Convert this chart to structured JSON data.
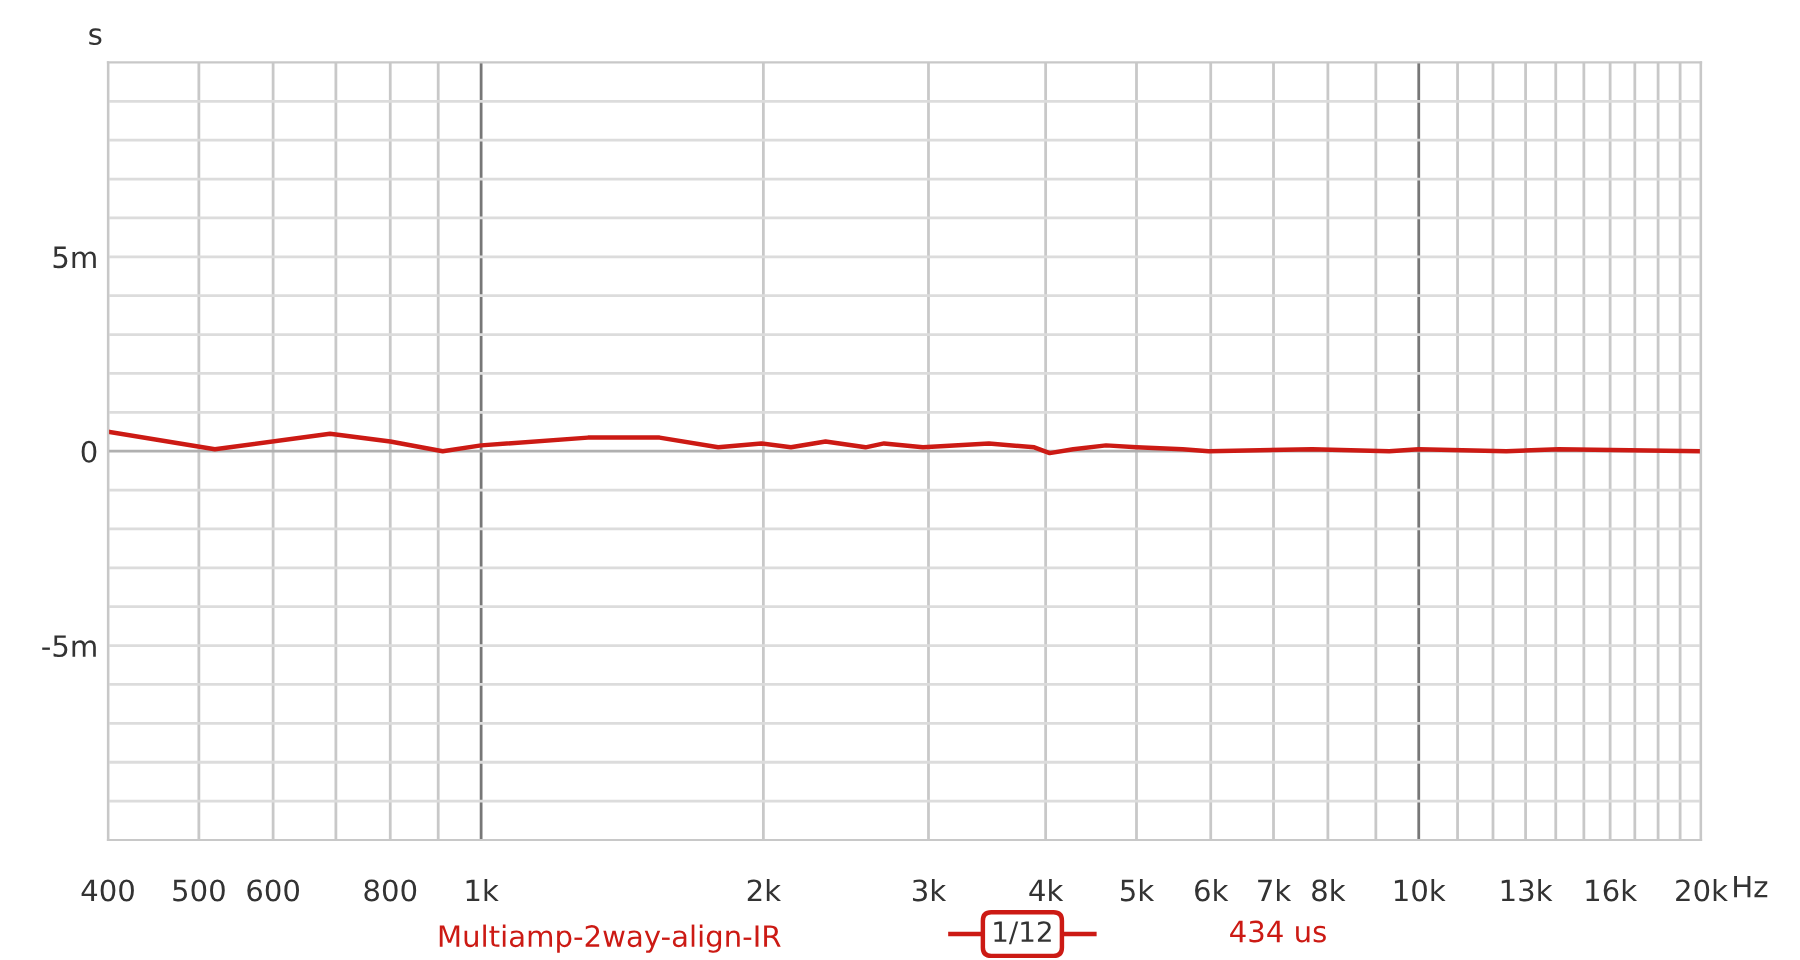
{
  "chart_data": {
    "type": "line",
    "ylabel": "s",
    "xlabel": "Hz",
    "log": "x",
    "grid": true,
    "legend": "bottom",
    "line_style": "solid",
    "marker": "none",
    "xlim": [
      400,
      20000
    ],
    "xticks": [
      400,
      500,
      600,
      {
        "value": 700,
        "label": null
      },
      800,
      {
        "value": 900,
        "label": null
      },
      {
        "value": 1000,
        "label": "1k"
      },
      {
        "value": 2000,
        "label": "2k"
      },
      {
        "value": 3000,
        "label": "3k"
      },
      {
        "value": 4000,
        "label": "4k"
      },
      {
        "value": 5000,
        "label": "5k"
      },
      {
        "value": 6000,
        "label": "6k"
      },
      {
        "value": 7000,
        "label": "7k"
      },
      {
        "value": 8000,
        "label": "8k"
      },
      {
        "value": 9000,
        "label": null
      },
      {
        "value": 10000,
        "label": "10k"
      },
      {
        "value": 11000,
        "label": null
      },
      {
        "value": 12000,
        "label": null
      },
      {
        "value": 13000,
        "label": "13k"
      },
      {
        "value": 14000,
        "label": null
      },
      {
        "value": 15000,
        "label": null
      },
      {
        "value": 16000,
        "label": "16k"
      },
      {
        "value": 17000,
        "label": null
      },
      {
        "value": 18000,
        "label": null
      },
      {
        "value": 19000,
        "label": null
      },
      {
        "value": 20000,
        "label": "20k"
      }
    ],
    "ylim": [
      -10,
      10
    ],
    "yticks": [
      {
        "value": -9,
        "label": null
      },
      {
        "value": -8,
        "label": null
      },
      {
        "value": -7,
        "label": null
      },
      {
        "value": -6,
        "label": null
      },
      {
        "value": -5,
        "label": "-5m"
      },
      {
        "value": -4,
        "label": null
      },
      {
        "value": -3,
        "label": null
      },
      {
        "value": -2,
        "label": null
      },
      {
        "value": -1,
        "label": null
      },
      0,
      {
        "value": 1,
        "label": null
      },
      {
        "value": 2,
        "label": null
      },
      {
        "value": 3,
        "label": null
      },
      {
        "value": 4,
        "label": null
      },
      {
        "value": 5,
        "label": "5m"
      },
      {
        "value": 6,
        "label": null
      },
      {
        "value": 7,
        "label": null
      },
      {
        "value": 8,
        "label": null
      },
      {
        "value": 9,
        "label": null
      }
    ],
    "series": [
      {
        "name": "Multiamp-2way-align-IR",
        "color": "#cc1a14",
        "x": [
          400,
          520,
          690,
          800,
          910,
          1000,
          1300,
          1550,
          1790,
          1990,
          2140,
          2330,
          2570,
          2690,
          2960,
          3480,
          3890,
          4040,
          4280,
          4640,
          5000,
          5600,
          5970,
          7700,
          9300,
          10000,
          12400,
          14100,
          20000
        ],
        "values": [
          0.5,
          0.05,
          0.45,
          0.25,
          0.0,
          0.15,
          0.35,
          0.35,
          0.1,
          0.2,
          0.1,
          0.25,
          0.1,
          0.2,
          0.1,
          0.2,
          0.1,
          -0.05,
          0.05,
          0.15,
          0.1,
          0.05,
          0.0,
          0.05,
          0.0,
          0.05,
          0.0,
          0.05,
          0.0
        ]
      }
    ],
    "annotations": [
      "1/12",
      "434 us"
    ]
  }
}
